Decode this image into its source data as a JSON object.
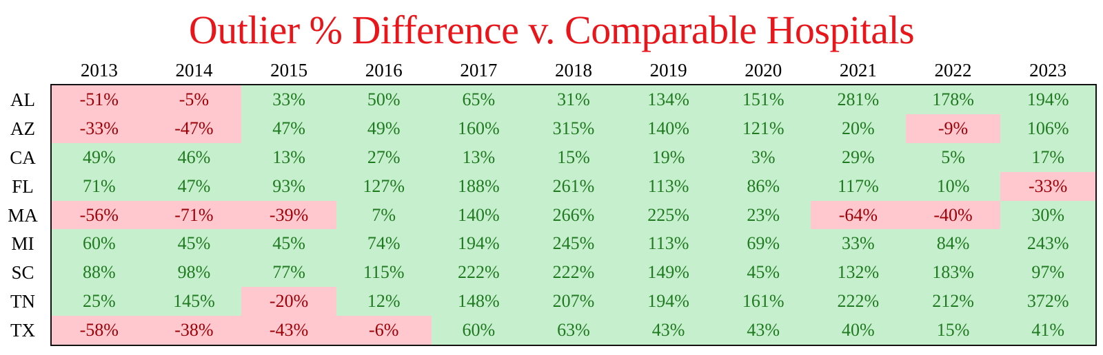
{
  "title": "Outlier % Difference v. Comparable Hospitals",
  "colors": {
    "title": "#e8161b",
    "positive_fill": "#c6efce",
    "positive_text": "#1f7a1f",
    "negative_fill": "#ffc7ce",
    "negative_text": "#9c0006"
  },
  "chart_data": {
    "type": "table",
    "title": "Outlier % Difference v. Comparable Hospitals",
    "columns": [
      "2013",
      "2014",
      "2015",
      "2016",
      "2017",
      "2018",
      "2019",
      "2020",
      "2021",
      "2022",
      "2023"
    ],
    "rows": [
      {
        "label": "AL",
        "values": [
          "-51%",
          "-5%",
          "33%",
          "50%",
          "65%",
          "31%",
          "134%",
          "151%",
          "281%",
          "178%",
          "194%"
        ]
      },
      {
        "label": "AZ",
        "values": [
          "-33%",
          "-47%",
          "47%",
          "49%",
          "160%",
          "315%",
          "140%",
          "121%",
          "20%",
          "-9%",
          "106%"
        ]
      },
      {
        "label": "CA",
        "values": [
          "49%",
          "46%",
          "13%",
          "27%",
          "13%",
          "15%",
          "19%",
          "3%",
          "29%",
          "5%",
          "17%"
        ]
      },
      {
        "label": "FL",
        "values": [
          "71%",
          "47%",
          "93%",
          "127%",
          "188%",
          "261%",
          "113%",
          "86%",
          "117%",
          "10%",
          "-33%"
        ]
      },
      {
        "label": "MA",
        "values": [
          "-56%",
          "-71%",
          "-39%",
          "7%",
          "140%",
          "266%",
          "225%",
          "23%",
          "-64%",
          "-40%",
          "30%"
        ]
      },
      {
        "label": "MI",
        "values": [
          "60%",
          "45%",
          "45%",
          "74%",
          "194%",
          "245%",
          "113%",
          "69%",
          "33%",
          "84%",
          "243%"
        ]
      },
      {
        "label": "SC",
        "values": [
          "88%",
          "98%",
          "77%",
          "115%",
          "222%",
          "222%",
          "149%",
          "45%",
          "132%",
          "183%",
          "97%"
        ]
      },
      {
        "label": "TN",
        "values": [
          "25%",
          "145%",
          "-20%",
          "12%",
          "148%",
          "207%",
          "194%",
          "161%",
          "222%",
          "212%",
          "372%"
        ]
      },
      {
        "label": "TX",
        "values": [
          "-58%",
          "-38%",
          "-43%",
          "-6%",
          "60%",
          "63%",
          "43%",
          "43%",
          "40%",
          "15%",
          "41%"
        ]
      }
    ]
  }
}
